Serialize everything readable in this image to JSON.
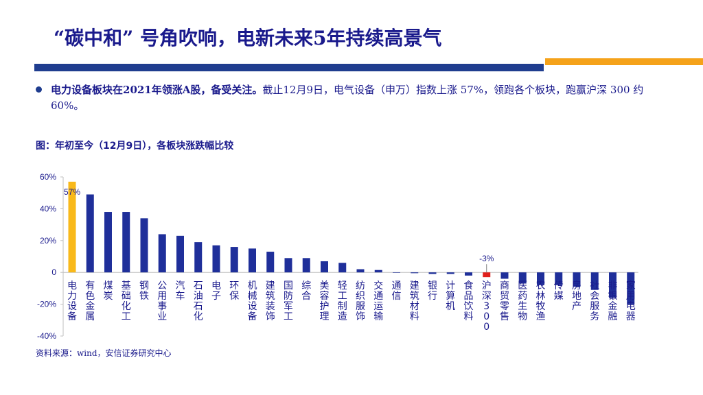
{
  "slide": {
    "title": "“碳中和” 号角吹响，电新未来5年持续高景气",
    "bullet_bold": "电力设备板块在2021年领涨A股，备受关注。",
    "bullet_text": "截止12月9日，电气设备（申万）指数上涨 57%，领跑各个板块，跑赢沪深 300 约60%。",
    "figure_title": "图：年初至今（12月9日），各板块涨跌幅比较",
    "source": "资料来源：wind，安信证券研究中心"
  },
  "colors": {
    "primary_bar": "#1f2f9a",
    "highlight": "#f9b91a",
    "index": "#e0201c",
    "accent_orange": "#f5a21a",
    "title": "#1a1a8c"
  },
  "chart_data": {
    "type": "bar",
    "categories": [
      "电力设备",
      "有色金属",
      "煤炭",
      "基础化工",
      "钢铁",
      "公用事业",
      "汽车",
      "石油石化",
      "电子",
      "环保",
      "机械设备",
      "建筑装饰",
      "国防军工",
      "综合",
      "美容护理",
      "轻工制造",
      "纺织服饰",
      "交通运输",
      "通信",
      "建筑材料",
      "银行",
      "计算机",
      "食品饮料",
      "沪深300",
      "商贸零售",
      "医药生物",
      "农林牧渔",
      "传媒",
      "房地产",
      "社会服务",
      "非银金融",
      "家用电器"
    ],
    "values": [
      57,
      49,
      38,
      38,
      34,
      24,
      23,
      19,
      17,
      16,
      15,
      13,
      9,
      9,
      7,
      6,
      2,
      1.5,
      0,
      -0.5,
      -1,
      -1,
      -2,
      -3,
      -4,
      -7,
      -8,
      -8,
      -9,
      -11,
      -16,
      -20
    ],
    "highlight_index": 0,
    "index_series_index": 23,
    "data_labels": [
      {
        "index": 0,
        "text": "57%"
      },
      {
        "index": 23,
        "text": "-3%"
      }
    ],
    "ylim": [
      -40,
      60
    ],
    "yticks": [
      60,
      40,
      20,
      0,
      -20,
      -40
    ],
    "ytick_labels": [
      "60%",
      "40%",
      "20%",
      "0",
      "-20%",
      "-40%"
    ],
    "grid": false,
    "legend": "none"
  }
}
